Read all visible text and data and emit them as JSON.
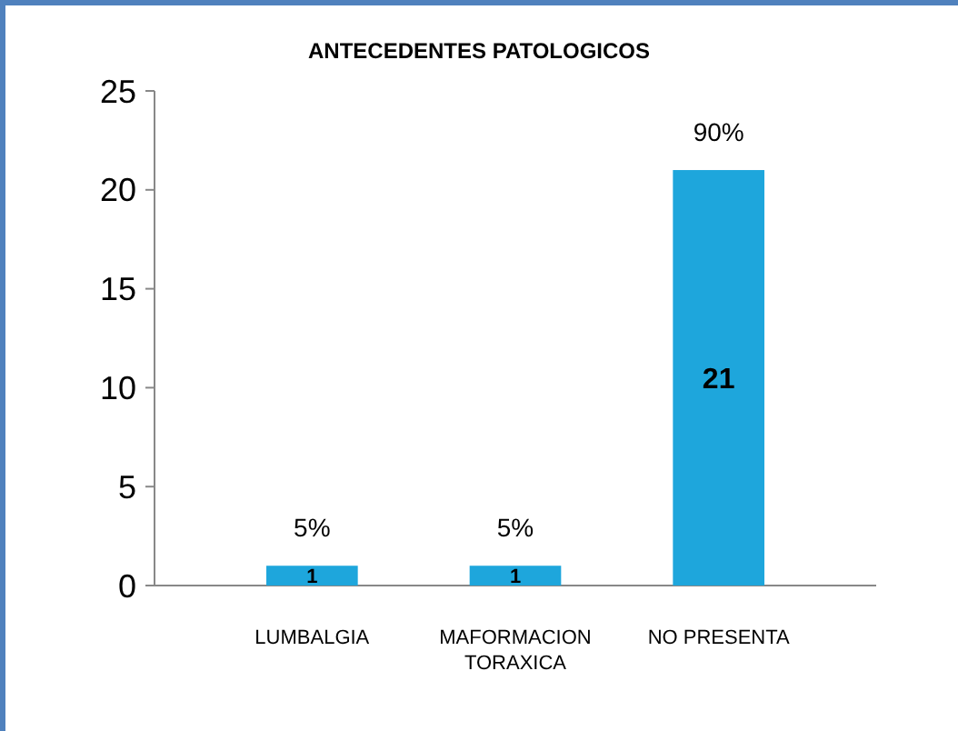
{
  "chart_data": {
    "type": "bar",
    "title": "ANTECEDENTES PATOLOGICOS",
    "categories": [
      "LUMBALGIA",
      "MAFORMACION TORAXICA",
      "NO PRESENTA"
    ],
    "values": [
      1,
      1,
      21
    ],
    "color": "#1ea6dc",
    "ylim": [
      0,
      25
    ],
    "yticks": [
      0,
      5,
      10,
      15,
      20,
      25
    ],
    "grid": false,
    "data_labels": true,
    "annotations": [
      {
        "text": "5%",
        "x": "LUMBALGIA",
        "y": 1
      },
      {
        "text": "5%",
        "x": "MAFORMACION TORAXICA",
        "y": 1
      },
      {
        "text": "90%",
        "x": "NO PRESENTA",
        "y": 21
      }
    ]
  }
}
